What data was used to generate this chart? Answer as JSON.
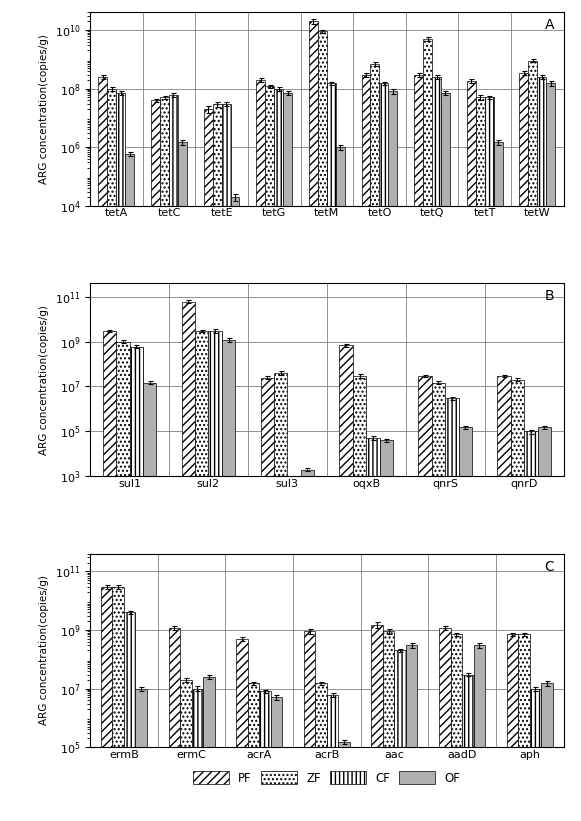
{
  "panel_A": {
    "title": "A",
    "ylabel": "ARG concentration(copies/g)",
    "ylim_low": 10000.0,
    "ylim_high": 40000000000.0,
    "yticks": [
      10000.0,
      1000000.0,
      100000000.0,
      10000000000.0
    ],
    "categories": [
      "tetA",
      "tetC",
      "tetE",
      "tetG",
      "tetM",
      "tetO",
      "tetQ",
      "tetT",
      "tetW"
    ],
    "PF": [
      250000000.0,
      40000000.0,
      20000000.0,
      200000000.0,
      20000000000.0,
      300000000.0,
      300000000.0,
      180000000.0,
      350000000.0
    ],
    "ZF": [
      100000000.0,
      50000000.0,
      30000000.0,
      120000000.0,
      9000000000.0,
      700000000.0,
      5000000000.0,
      50000000.0,
      900000000.0
    ],
    "CF": [
      70000000.0,
      60000000.0,
      30000000.0,
      100000000.0,
      150000000.0,
      150000000.0,
      250000000.0,
      50000000.0,
      250000000.0
    ],
    "OF": [
      600000.0,
      1500000.0,
      20000.0,
      70000000.0,
      1000000.0,
      80000000.0,
      70000000.0,
      1500000.0,
      150000000.0
    ],
    "PF_err": [
      40000000.0,
      5000000.0,
      5000000.0,
      30000000.0,
      4000000000.0,
      50000000.0,
      50000000.0,
      30000000.0,
      60000000.0
    ],
    "ZF_err": [
      15000000.0,
      6000000.0,
      6000000.0,
      15000000.0,
      1000000000.0,
      100000000.0,
      800000000.0,
      8000000.0,
      120000000.0
    ],
    "CF_err": [
      10000000.0,
      8000000.0,
      5000000.0,
      15000000.0,
      20000000.0,
      20000000.0,
      40000000.0,
      7000000.0,
      40000000.0
    ],
    "OF_err": [
      100000.0,
      300000.0,
      5000.0,
      12000000.0,
      200000.0,
      13000000.0,
      12000000.0,
      300000.0,
      25000000.0
    ]
  },
  "panel_B": {
    "title": "B",
    "ylabel": "ARG concentration(copies/g)",
    "ylim_low": 1000.0,
    "ylim_high": 400000000000.0,
    "yticks": [
      1000.0,
      100000.0,
      10000000.0,
      1000000000.0,
      100000000000.0
    ],
    "categories": [
      "sul1",
      "sul2",
      "sul3",
      "oqxB",
      "qnrS",
      "qnrD"
    ],
    "PF": [
      3000000000.0,
      60000000000.0,
      25000000.0,
      700000000.0,
      30000000.0,
      30000000.0
    ],
    "ZF": [
      1000000000.0,
      3000000000.0,
      40000000.0,
      30000000.0,
      15000000.0,
      20000000.0
    ],
    "CF": [
      600000000.0,
      3000000000.0,
      0,
      50000.0,
      3000000.0,
      100000.0
    ],
    "OF": [
      15000000.0,
      1200000000.0,
      2000.0,
      40000.0,
      150000.0,
      150000.0
    ],
    "PF_err": [
      400000000.0,
      8000000000.0,
      4000000.0,
      100000000.0,
      4000000.0,
      4000000.0
    ],
    "ZF_err": [
      150000000.0,
      400000000.0,
      7000000.0,
      5000000.0,
      2000000.0,
      3000000.0
    ],
    "CF_err": [
      80000000.0,
      500000000.0,
      0,
      10000.0,
      400000.0,
      20000.0
    ],
    "OF_err": [
      2000000.0,
      200000000.0,
      300.0,
      7000.0,
      20000.0,
      20000.0
    ]
  },
  "panel_C": {
    "title": "C",
    "ylabel": "ARG concentration(copies/g)",
    "ylim_low": 100000.0,
    "ylim_high": 400000000000.0,
    "yticks": [
      100000.0,
      10000000.0,
      1000000000.0,
      100000000000.0
    ],
    "categories": [
      "ermB",
      "ermC",
      "acrA",
      "acrB",
      "aac",
      "aadD",
      "aph"
    ],
    "PF": [
      30000000000.0,
      1200000000.0,
      500000000.0,
      900000000.0,
      1500000000.0,
      1200000000.0,
      700000000.0
    ],
    "ZF": [
      30000000000.0,
      20000000.0,
      15000000.0,
      15000000.0,
      900000000.0,
      700000000.0,
      700000000.0
    ],
    "CF": [
      4000000000.0,
      10000000.0,
      8000000.0,
      6000000.0,
      200000000.0,
      30000000.0,
      10000000.0
    ],
    "OF": [
      10000000.0,
      25000000.0,
      5000000.0,
      150000.0,
      300000000.0,
      300000000.0,
      15000000.0
    ],
    "PF_err": [
      5000000000.0,
      200000000.0,
      80000000.0,
      150000000.0,
      300000000.0,
      200000000.0,
      100000000.0
    ],
    "ZF_err": [
      5000000000.0,
      3000000.0,
      2000000.0,
      2000000.0,
      150000000.0,
      100000000.0,
      100000000.0
    ],
    "CF_err": [
      500000000.0,
      2000000.0,
      800000.0,
      800000.0,
      30000000.0,
      4000000.0,
      1500000.0
    ],
    "OF_err": [
      1500000.0,
      4000000.0,
      800000.0,
      20000.0,
      50000000.0,
      50000000.0,
      2500000.0
    ]
  },
  "series": [
    "PF",
    "ZF",
    "CF",
    "OF"
  ],
  "bar_width": 0.17,
  "edgecolor": "black"
}
